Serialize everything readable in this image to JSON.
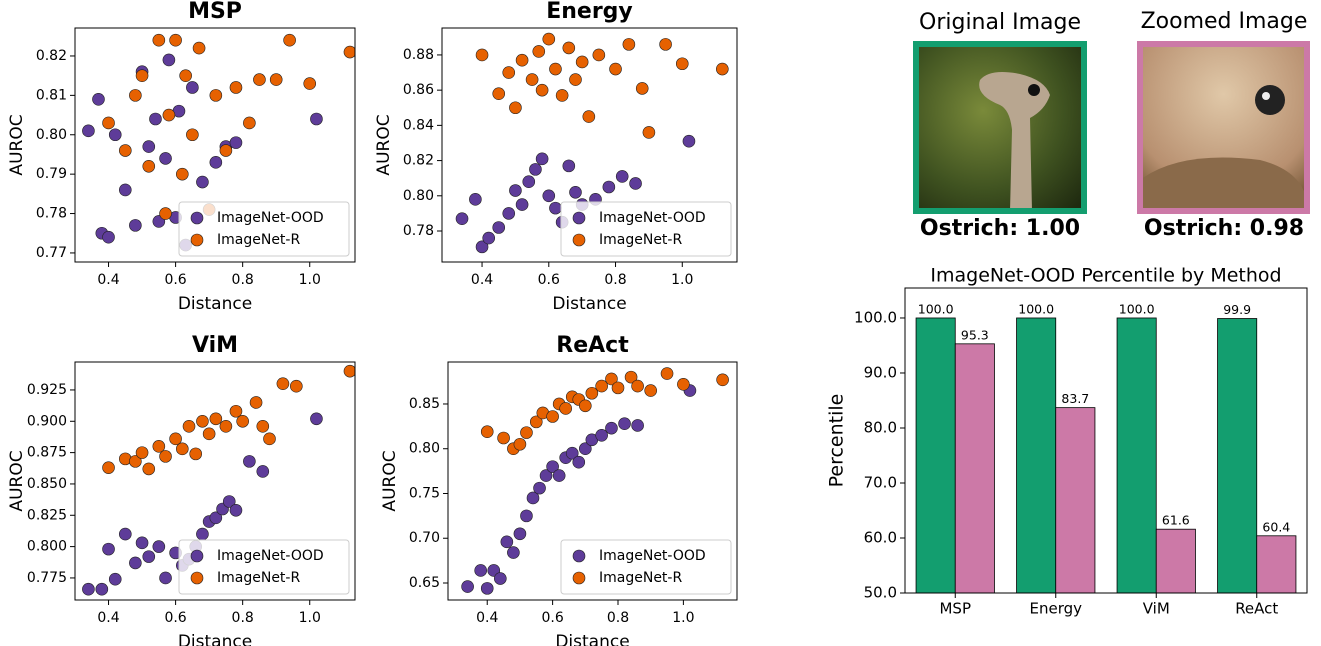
{
  "chart_data": [
    {
      "type": "scatter",
      "title": "MSP",
      "xlabel": "Distance",
      "ylabel": "AUROC",
      "xlim": [
        0.3,
        1.135
      ],
      "ylim": [
        0.7677,
        0.8271
      ],
      "xticks": [
        0.4,
        0.6,
        0.8,
        {
          "value": 1,
          "label": "1.0"
        }
      ],
      "yticks": [
        0.77,
        0.78,
        0.79,
        {
          "value": 0.8,
          "label": "0.80"
        },
        0.81,
        0.82
      ],
      "legend": "lower right",
      "series": [
        {
          "name": "ImageNet-OOD",
          "color": "#5e3c99",
          "x": [
            0.34,
            0.37,
            0.38,
            0.4,
            0.42,
            0.45,
            0.48,
            0.5,
            0.52,
            0.54,
            0.55,
            0.57,
            0.58,
            0.6,
            0.61,
            0.63,
            0.65,
            0.68,
            0.72,
            0.75,
            0.78,
            1.02
          ],
          "y": [
            0.801,
            0.809,
            0.775,
            0.774,
            0.8,
            0.786,
            0.777,
            0.816,
            0.797,
            0.804,
            0.778,
            0.794,
            0.819,
            0.779,
            0.806,
            0.772,
            0.812,
            0.788,
            0.793,
            0.797,
            0.798,
            0.804
          ]
        },
        {
          "name": "ImageNet-R",
          "color": "#e66101",
          "x": [
            0.4,
            0.45,
            0.48,
            0.5,
            0.52,
            0.55,
            0.57,
            0.58,
            0.6,
            0.62,
            0.63,
            0.65,
            0.67,
            0.7,
            0.72,
            0.75,
            0.78,
            0.82,
            0.85,
            0.9,
            0.94,
            1.0,
            1.12
          ],
          "y": [
            0.803,
            0.796,
            0.81,
            0.815,
            0.792,
            0.824,
            0.78,
            0.805,
            0.824,
            0.79,
            0.815,
            0.8,
            0.822,
            0.781,
            0.81,
            0.796,
            0.812,
            0.803,
            0.814,
            0.814,
            0.824,
            0.813,
            0.821
          ]
        }
      ]
    },
    {
      "type": "scatter",
      "title": "Energy",
      "xlabel": "Distance",
      "ylabel": "AUROC",
      "xlim": [
        0.28,
        1.164
      ],
      "ylim": [
        0.7624,
        0.8953
      ],
      "xticks": [
        0.4,
        0.6,
        0.8,
        {
          "value": 1,
          "label": "1.0"
        }
      ],
      "yticks": [
        0.78,
        {
          "value": 0.8,
          "label": "0.80"
        },
        0.82,
        0.84,
        0.86,
        0.88
      ],
      "legend": "lower right",
      "series": [
        {
          "name": "ImageNet-OOD",
          "color": "#5e3c99",
          "x": [
            0.34,
            0.38,
            0.4,
            0.42,
            0.45,
            0.48,
            0.5,
            0.52,
            0.54,
            0.56,
            0.58,
            0.6,
            0.62,
            0.64,
            0.66,
            0.68,
            0.7,
            0.74,
            0.78,
            0.82,
            0.86,
            1.02
          ],
          "y": [
            0.787,
            0.798,
            0.771,
            0.776,
            0.782,
            0.79,
            0.803,
            0.795,
            0.808,
            0.815,
            0.821,
            0.8,
            0.793,
            0.785,
            0.817,
            0.802,
            0.795,
            0.798,
            0.805,
            0.811,
            0.807,
            0.831
          ]
        },
        {
          "name": "ImageNet-R",
          "color": "#e66101",
          "x": [
            0.4,
            0.45,
            0.48,
            0.5,
            0.52,
            0.55,
            0.57,
            0.58,
            0.6,
            0.62,
            0.64,
            0.66,
            0.68,
            0.7,
            0.72,
            0.75,
            0.8,
            0.84,
            0.88,
            0.9,
            0.95,
            1.0,
            1.12
          ],
          "y": [
            0.88,
            0.858,
            0.87,
            0.85,
            0.877,
            0.866,
            0.882,
            0.86,
            0.889,
            0.872,
            0.857,
            0.884,
            0.866,
            0.876,
            0.845,
            0.88,
            0.872,
            0.886,
            0.861,
            0.836,
            0.886,
            0.875,
            0.872
          ]
        }
      ]
    },
    {
      "type": "scatter",
      "title": "ViM",
      "xlabel": "Distance",
      "ylabel": "AUROC",
      "xlim": [
        0.3,
        1.135
      ],
      "ylim": [
        0.7574,
        0.9473
      ],
      "xticks": [
        0.4,
        0.6,
        0.8,
        {
          "value": 1,
          "label": "1.0"
        }
      ],
      "yticks": [
        0.775,
        {
          "value": 0.8,
          "label": "0.800"
        },
        0.825,
        {
          "value": 0.85,
          "label": "0.850"
        },
        0.875,
        {
          "value": 0.9,
          "label": "0.900"
        },
        0.925
      ],
      "legend": "lower right",
      "series": [
        {
          "name": "ImageNet-OOD",
          "color": "#5e3c99",
          "x": [
            0.34,
            0.38,
            0.4,
            0.42,
            0.45,
            0.48,
            0.5,
            0.52,
            0.55,
            0.57,
            0.6,
            0.62,
            0.64,
            0.66,
            0.68,
            0.7,
            0.72,
            0.74,
            0.76,
            0.78,
            0.82,
            0.86,
            1.02
          ],
          "y": [
            0.766,
            0.766,
            0.798,
            0.774,
            0.81,
            0.787,
            0.803,
            0.792,
            0.8,
            0.775,
            0.795,
            0.785,
            0.79,
            0.8,
            0.81,
            0.82,
            0.823,
            0.83,
            0.836,
            0.829,
            0.868,
            0.86,
            0.902
          ]
        },
        {
          "name": "ImageNet-R",
          "color": "#e66101",
          "x": [
            0.4,
            0.45,
            0.48,
            0.5,
            0.52,
            0.55,
            0.57,
            0.6,
            0.62,
            0.64,
            0.66,
            0.68,
            0.7,
            0.72,
            0.75,
            0.78,
            0.8,
            0.84,
            0.86,
            0.88,
            0.92,
            0.96,
            1.12
          ],
          "y": [
            0.863,
            0.87,
            0.868,
            0.875,
            0.862,
            0.88,
            0.872,
            0.886,
            0.878,
            0.896,
            0.874,
            0.9,
            0.89,
            0.902,
            0.896,
            0.908,
            0.9,
            0.915,
            0.896,
            0.886,
            0.93,
            0.928,
            0.94
          ]
        }
      ]
    },
    {
      "type": "scatter",
      "title": "ReAct",
      "xlabel": "Distance",
      "ylabel": "AUROC",
      "xlim": [
        0.28,
        1.164
      ],
      "ylim": [
        0.631,
        0.8969
      ],
      "xticks": [
        0.4,
        0.6,
        0.8,
        {
          "value": 1,
          "label": "1.0"
        }
      ],
      "yticks": [
        0.65,
        {
          "value": 0.7,
          "label": "0.70"
        },
        0.75,
        {
          "value": 0.8,
          "label": "0.80"
        },
        0.85
      ],
      "legend": "lower right",
      "series": [
        {
          "name": "ImageNet-OOD",
          "color": "#5e3c99",
          "x": [
            0.34,
            0.38,
            0.4,
            0.42,
            0.44,
            0.46,
            0.48,
            0.5,
            0.52,
            0.54,
            0.56,
            0.58,
            0.6,
            0.62,
            0.64,
            0.66,
            0.68,
            0.7,
            0.72,
            0.75,
            0.78,
            0.82,
            0.86,
            1.02
          ],
          "y": [
            0.646,
            0.664,
            0.644,
            0.664,
            0.655,
            0.696,
            0.684,
            0.705,
            0.725,
            0.745,
            0.756,
            0.77,
            0.78,
            0.77,
            0.79,
            0.795,
            0.785,
            0.8,
            0.81,
            0.815,
            0.823,
            0.828,
            0.826,
            0.865
          ]
        },
        {
          "name": "ImageNet-R",
          "color": "#e66101",
          "x": [
            0.4,
            0.45,
            0.48,
            0.5,
            0.52,
            0.55,
            0.57,
            0.6,
            0.62,
            0.64,
            0.66,
            0.68,
            0.7,
            0.72,
            0.75,
            0.78,
            0.8,
            0.84,
            0.86,
            0.9,
            0.95,
            1.0,
            1.12
          ],
          "y": [
            0.819,
            0.812,
            0.8,
            0.805,
            0.818,
            0.83,
            0.84,
            0.836,
            0.85,
            0.845,
            0.858,
            0.855,
            0.848,
            0.862,
            0.87,
            0.878,
            0.868,
            0.88,
            0.87,
            0.865,
            0.884,
            0.872,
            0.877
          ]
        }
      ]
    },
    {
      "type": "bar",
      "title": "ImageNet-OOD Percentile by Method",
      "ylabel": "Percentile",
      "categories": [
        "MSP",
        "Energy",
        "ViM",
        "ReAct"
      ],
      "ylim": [
        50,
        105.45
      ],
      "yticks": [
        {
          "value": 50,
          "label": "50.0"
        },
        {
          "value": 60,
          "label": "60.0"
        },
        {
          "value": 70,
          "label": "70.0"
        },
        {
          "value": 80,
          "label": "80.0"
        },
        {
          "value": 90,
          "label": "90.0"
        },
        {
          "value": 100,
          "label": "100.0"
        }
      ],
      "series": [
        {
          "color": "#139e6f",
          "values": [
            100,
            100,
            100,
            99.9
          ],
          "value_labels": [
            "100.0",
            "100.0",
            "100.0",
            "99.9"
          ]
        },
        {
          "color": "#cc79a7",
          "values": [
            95.3,
            83.7,
            61.6,
            60.4
          ]
        }
      ]
    }
  ],
  "images": [
    {
      "title": "Original Image",
      "caption": "Ostrich: 1.00"
    },
    {
      "title": "Zoomed Image",
      "caption": "Ostrich: 0.98"
    }
  ]
}
